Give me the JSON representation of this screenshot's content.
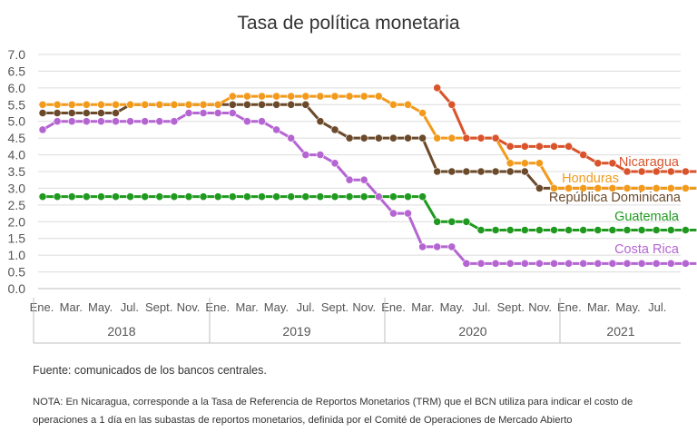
{
  "chart_data": {
    "type": "line",
    "title": "Tasa de política monetaria",
    "ylim": [
      0,
      7
    ],
    "yticks": [
      "0.0",
      "0.5",
      "1.0",
      "1.5",
      "2.0",
      "2.5",
      "3.0",
      "3.5",
      "4.0",
      "4.5",
      "5.0",
      "5.5",
      "6.0",
      "6.5",
      "7.0"
    ],
    "x_tick_labels": [
      "Ene.",
      "Mar.",
      "May.",
      "Jul.",
      "Sept.",
      "Nov.",
      "Ene.",
      "Mar.",
      "May.",
      "Jul.",
      "Sept.",
      "Nov.",
      "Ene.",
      "Mar.",
      "May.",
      "Jul.",
      "Sept.",
      "Nov.",
      "Ene.",
      "Mar.",
      "May.",
      "Jul."
    ],
    "years": [
      "2018",
      "2019",
      "2020",
      "2021"
    ],
    "grid": true,
    "legend": "inline labels at right end of lines",
    "series": [
      {
        "name": "Nicaragua",
        "color": "#d9532b",
        "start_index": 27,
        "values": [
          6.0,
          5.5,
          4.5,
          4.5,
          4.5,
          4.25,
          4.25,
          4.25,
          4.25,
          4.25,
          4.0,
          3.75,
          3.75,
          3.5,
          3.5,
          3.5,
          3.5,
          3.5,
          3.5
        ]
      },
      {
        "name": "Honduras",
        "color": "#f29a1b",
        "start_index": 0,
        "values": [
          5.5,
          5.5,
          5.5,
          5.5,
          5.5,
          5.5,
          5.5,
          5.5,
          5.5,
          5.5,
          5.5,
          5.5,
          5.5,
          5.75,
          5.75,
          5.75,
          5.75,
          5.75,
          5.75,
          5.75,
          5.75,
          5.75,
          5.75,
          5.75,
          5.5,
          5.5,
          5.25,
          4.5,
          4.5,
          4.5,
          4.5,
          4.5,
          3.75,
          3.75,
          3.75,
          3.0,
          3.0,
          3.0,
          3.0,
          3.0,
          3.0,
          3.0,
          3.0,
          3.0,
          3.0,
          3.0
        ]
      },
      {
        "name": "República Dominicana",
        "color": "#6b4a2b",
        "start_index": 0,
        "values": [
          5.25,
          5.25,
          5.25,
          5.25,
          5.25,
          5.25,
          5.5,
          5.5,
          5.5,
          5.5,
          5.5,
          5.5,
          5.5,
          5.5,
          5.5,
          5.5,
          5.5,
          5.5,
          5.5,
          5.0,
          4.75,
          4.5,
          4.5,
          4.5,
          4.5,
          4.5,
          4.5,
          3.5,
          3.5,
          3.5,
          3.5,
          3.5,
          3.5,
          3.5,
          3.0,
          3.0,
          3.0,
          3.0,
          3.0,
          3.0,
          3.0,
          3.0,
          3.0,
          3.0,
          3.0,
          3.0
        ]
      },
      {
        "name": "Guatemala",
        "color": "#1f9a1f",
        "start_index": 0,
        "values": [
          2.75,
          2.75,
          2.75,
          2.75,
          2.75,
          2.75,
          2.75,
          2.75,
          2.75,
          2.75,
          2.75,
          2.75,
          2.75,
          2.75,
          2.75,
          2.75,
          2.75,
          2.75,
          2.75,
          2.75,
          2.75,
          2.75,
          2.75,
          2.75,
          2.75,
          2.75,
          2.75,
          2.0,
          2.0,
          2.0,
          1.75,
          1.75,
          1.75,
          1.75,
          1.75,
          1.75,
          1.75,
          1.75,
          1.75,
          1.75,
          1.75,
          1.75,
          1.75,
          1.75,
          1.75,
          1.75
        ]
      },
      {
        "name": "Costa Rica",
        "color": "#b565d2",
        "start_index": 0,
        "values": [
          4.75,
          5.0,
          5.0,
          5.0,
          5.0,
          5.0,
          5.0,
          5.0,
          5.0,
          5.0,
          5.25,
          5.25,
          5.25,
          5.25,
          5.0,
          5.0,
          4.75,
          4.5,
          4.0,
          4.0,
          3.75,
          3.25,
          3.25,
          2.75,
          2.25,
          2.25,
          1.25,
          1.25,
          1.25,
          0.75,
          0.75,
          0.75,
          0.75,
          0.75,
          0.75,
          0.75,
          0.75,
          0.75,
          0.75,
          0.75,
          0.75,
          0.75,
          0.75,
          0.75,
          0.75,
          0.75
        ]
      }
    ]
  },
  "footer": {
    "source": "Fuente: comunicados de los bancos centrales.",
    "note": "NOTA: En Nicaragua, corresponde a la Tasa de Referencia de Reportos Monetarios (TRM) que el BCN utiliza para indicar el costo de operaciones a 1 día en las subastas de reportos monetarios, definida por el Comité de Operaciones de Mercado Abierto"
  }
}
